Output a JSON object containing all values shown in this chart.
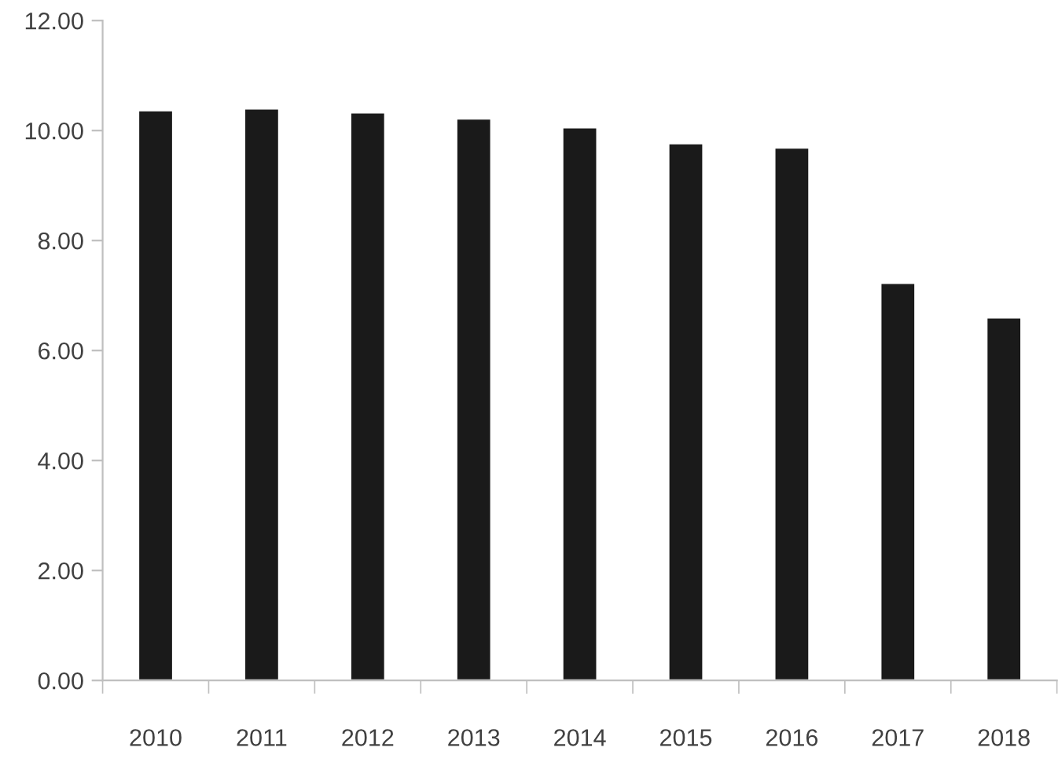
{
  "chart_data": {
    "type": "bar",
    "categories": [
      "2010",
      "2011",
      "2012",
      "2013",
      "2014",
      "2015",
      "2016",
      "2017",
      "2018"
    ],
    "values": [
      10.37,
      10.4,
      10.33,
      10.22,
      10.06,
      9.77,
      9.69,
      7.23,
      6.6
    ],
    "color": "#1a1a1a",
    "ylim": [
      0,
      12
    ],
    "yticks": [
      {
        "value": 0,
        "label": "0.00"
      },
      {
        "value": 2,
        "label": "2.00"
      },
      {
        "value": 4,
        "label": "4.00"
      },
      {
        "value": 6,
        "label": "6.00"
      },
      {
        "value": 8,
        "label": "8.00"
      },
      {
        "value": 10,
        "label": "10.00"
      },
      {
        "value": 12,
        "label": "12.00"
      }
    ],
    "grid": false,
    "legend": false
  }
}
